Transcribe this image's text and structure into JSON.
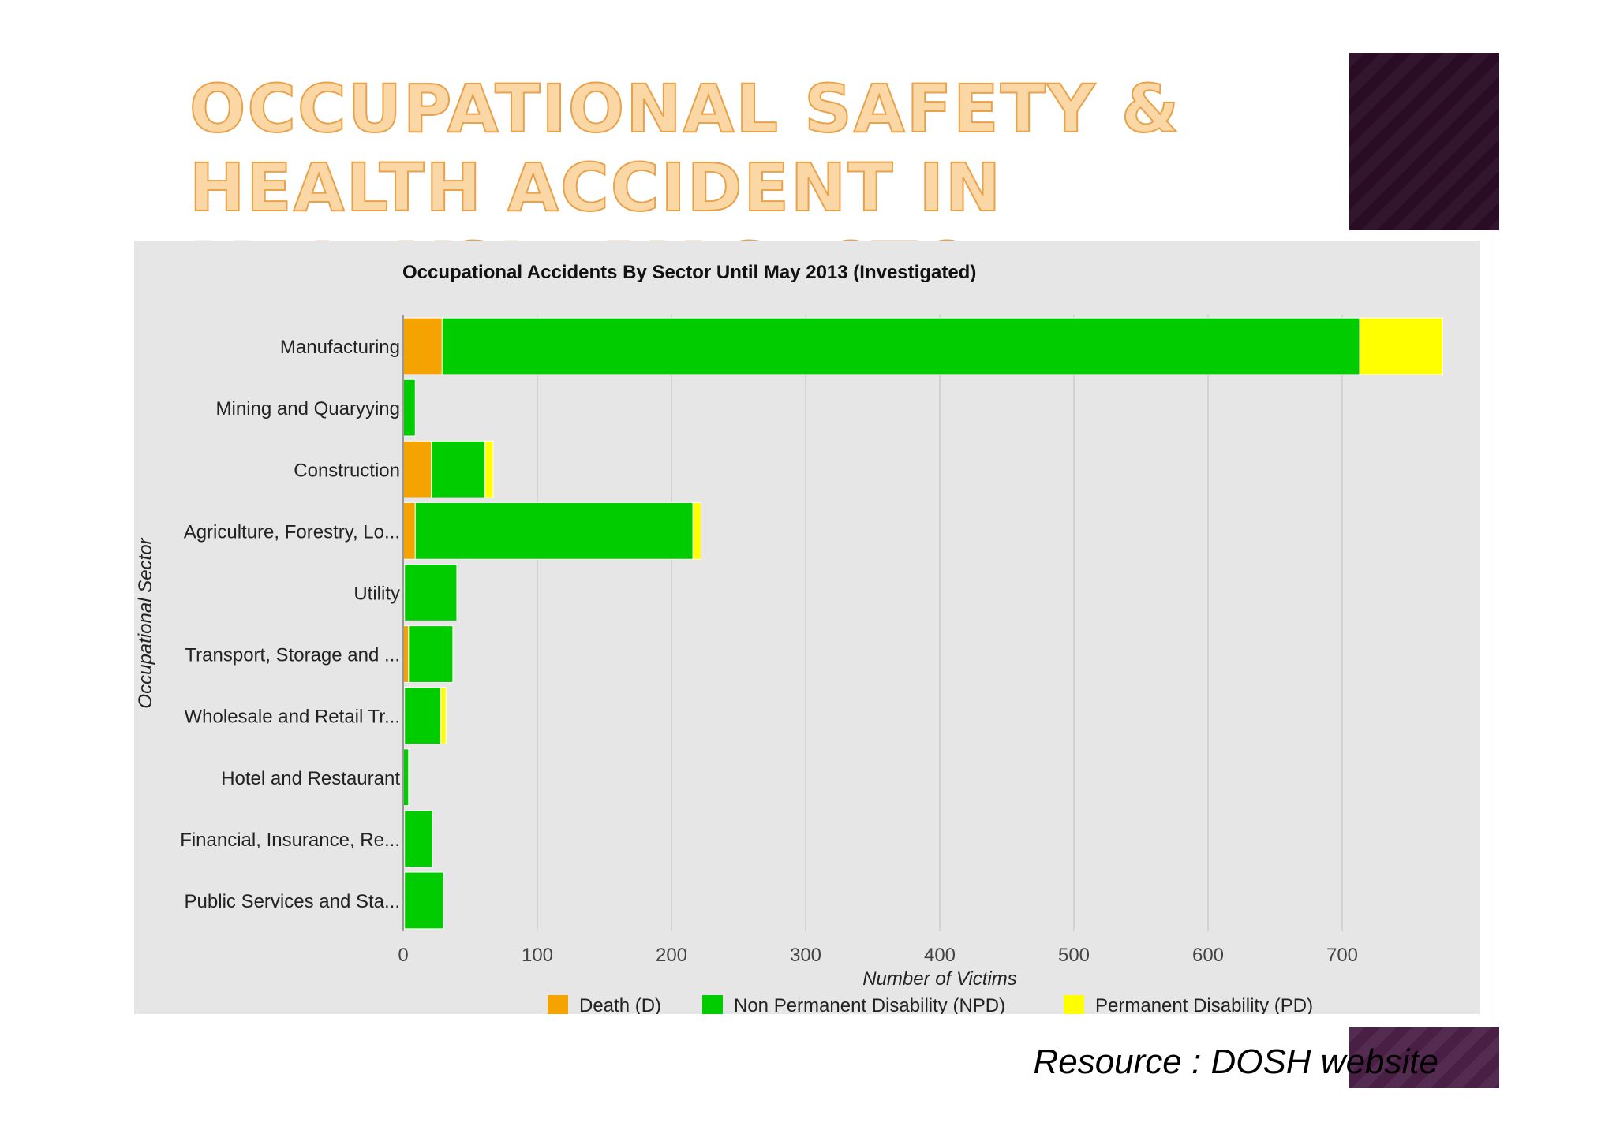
{
  "slide": {
    "title": "OCCUPATIONAL SAFETY & HEALTH ACCIDENT IN MALAYSIA BY SECTOR",
    "source": "Resource : DOSH website"
  },
  "chart_data": {
    "type": "bar",
    "orientation": "horizontal",
    "stacked": true,
    "title": "Occupational Accidents By Sector Until May 2013 (Investigated)",
    "xlabel": "Number of Victims",
    "ylabel": "Occupational Sector",
    "xlim": [
      0,
      800
    ],
    "xticks": [
      0,
      100,
      200,
      300,
      400,
      500,
      600,
      700
    ],
    "grid": true,
    "legend_position": "bottom",
    "categories": [
      "Manufacturing",
      "Mining and Quaryying",
      "Construction",
      "Agriculture, Forestry, Lo...",
      "Utility",
      "Transport, Storage and ...",
      "Wholesale and Retail Tr...",
      "Hotel and Restaurant",
      "Financial, Insurance, Re...",
      "Public Services and Sta..."
    ],
    "series": [
      {
        "name": "Death (D)",
        "color": "#f5a300",
        "values": [
          29,
          0,
          21,
          9,
          1,
          4,
          1,
          0,
          1,
          1
        ]
      },
      {
        "name": "Non Permanent Disability (NPD)",
        "color": "#00cc00",
        "values": [
          684,
          9,
          40,
          207,
          39,
          33,
          27,
          4,
          21,
          29
        ]
      },
      {
        "name": "Permanent Disability (PD)",
        "color": "#ffff00",
        "values": [
          62,
          0,
          6,
          6,
          0,
          0,
          4,
          0,
          0,
          0
        ]
      }
    ]
  }
}
